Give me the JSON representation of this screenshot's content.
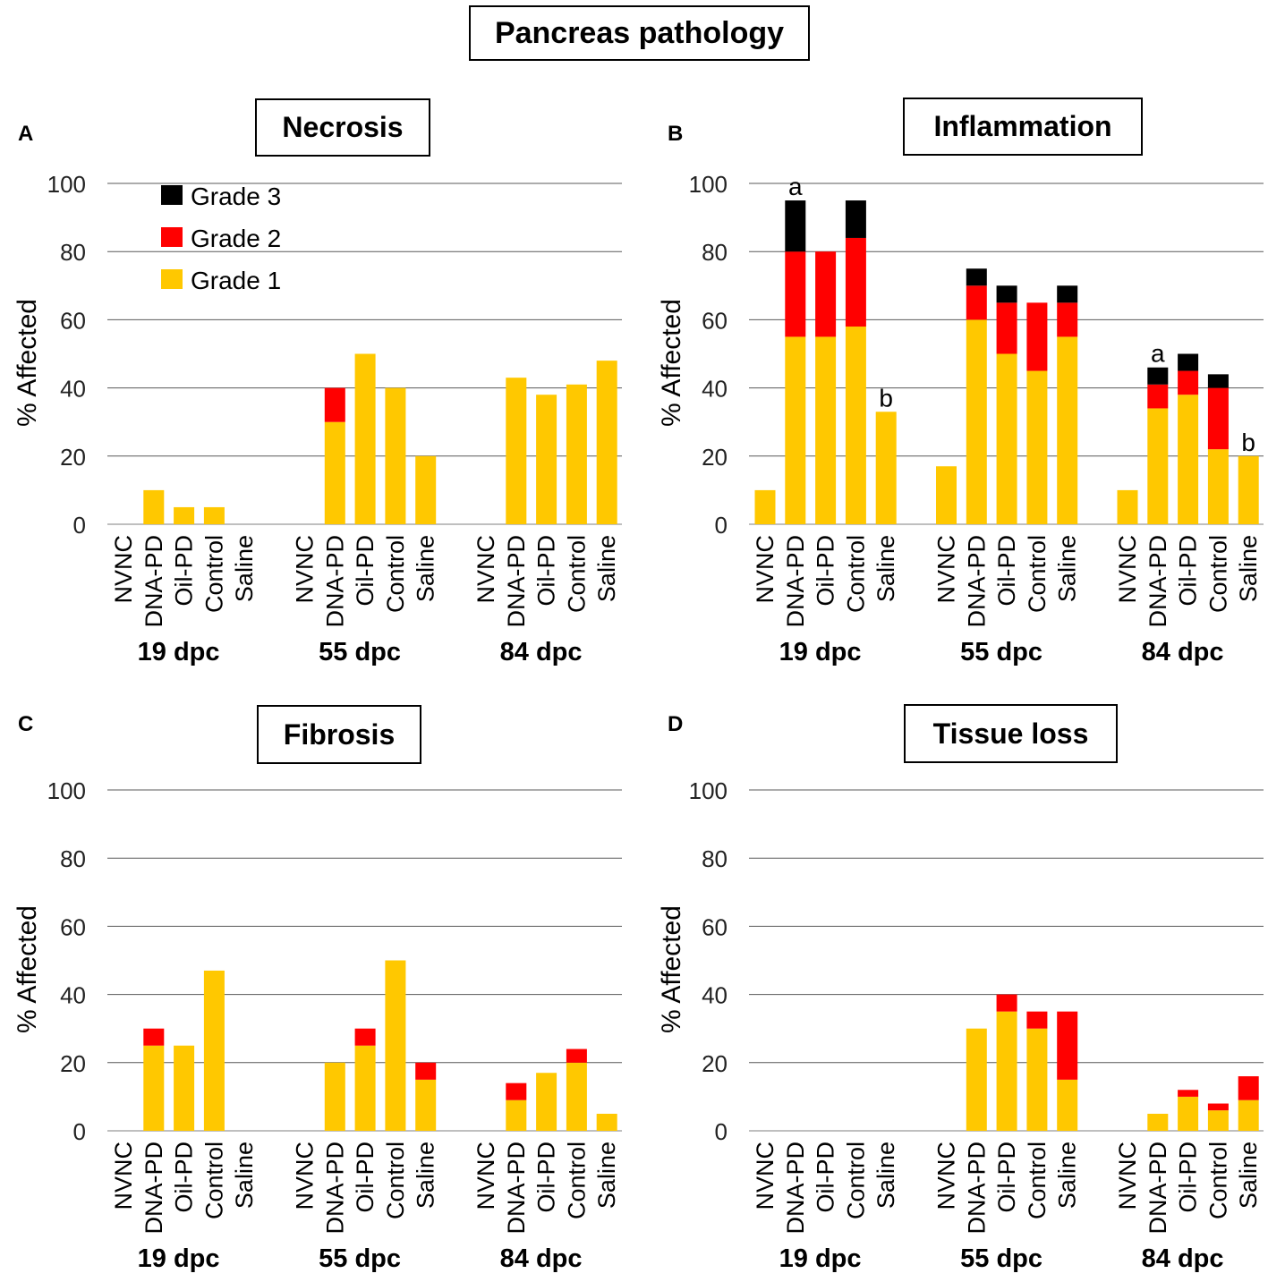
{
  "figure": {
    "title": "Pancreas pathology"
  },
  "colors": {
    "grade1": "#FFC800",
    "grade2": "#FF0000",
    "grade3": "#000000",
    "grid": "#595959",
    "axis": "#BFBFBF"
  },
  "chart_data": [
    {
      "panel": "A",
      "title": "Necrosis",
      "type": "bar",
      "stacked": true,
      "ylabel": "% Affected",
      "xlabel": "",
      "ylim": [
        0,
        100
      ],
      "yticks": [
        0,
        20,
        40,
        60,
        80,
        100
      ],
      "grid": true,
      "legend": {
        "position": "top-left",
        "entries": [
          "Grade 3",
          "Grade 2",
          "Grade 1"
        ]
      },
      "groups": [
        "19 dpc",
        "55 dpc",
        "84 dpc"
      ],
      "categories": [
        "NVNC",
        "DNA-PD",
        "Oil-PD",
        "Control",
        "Saline"
      ],
      "series": [
        {
          "name": "Grade 1",
          "values": [
            [
              0,
              10,
              5,
              5,
              0
            ],
            [
              0,
              30,
              50,
              40,
              20
            ],
            [
              0,
              43,
              38,
              41,
              48
            ]
          ]
        },
        {
          "name": "Grade 2",
          "values": [
            [
              0,
              0,
              0,
              0,
              0
            ],
            [
              0,
              10,
              0,
              0,
              0
            ],
            [
              0,
              0,
              0,
              0,
              0
            ]
          ]
        },
        {
          "name": "Grade 3",
          "values": [
            [
              0,
              0,
              0,
              0,
              0
            ],
            [
              0,
              0,
              0,
              0,
              0
            ],
            [
              0,
              0,
              0,
              0,
              0
            ]
          ]
        }
      ],
      "annotations": []
    },
    {
      "panel": "B",
      "title": "Inflammation",
      "type": "bar",
      "stacked": true,
      "ylabel": "% Affected",
      "xlabel": "",
      "ylim": [
        0,
        100
      ],
      "yticks": [
        0,
        20,
        40,
        60,
        80,
        100
      ],
      "grid": true,
      "legend": null,
      "groups": [
        "19 dpc",
        "55 dpc",
        "84 dpc"
      ],
      "categories": [
        "NVNC",
        "DNA-PD",
        "Oil-PD",
        "Control",
        "Saline"
      ],
      "series": [
        {
          "name": "Grade 1",
          "values": [
            [
              10,
              55,
              55,
              58,
              33
            ],
            [
              17,
              60,
              50,
              45,
              55
            ],
            [
              10,
              34,
              38,
              22,
              20
            ]
          ]
        },
        {
          "name": "Grade 2",
          "values": [
            [
              0,
              25,
              25,
              26,
              0
            ],
            [
              0,
              10,
              15,
              20,
              10
            ],
            [
              0,
              7,
              7,
              18,
              0
            ]
          ]
        },
        {
          "name": "Grade 3",
          "values": [
            [
              0,
              15,
              0,
              11,
              0
            ],
            [
              0,
              5,
              5,
              0,
              5
            ],
            [
              0,
              5,
              5,
              4,
              0
            ]
          ]
        }
      ],
      "annotations": [
        {
          "group": 0,
          "category": 1,
          "text": "a"
        },
        {
          "group": 0,
          "category": 4,
          "text": "b"
        },
        {
          "group": 2,
          "category": 1,
          "text": "a"
        },
        {
          "group": 2,
          "category": 4,
          "text": "b"
        }
      ]
    },
    {
      "panel": "C",
      "title": "Fibrosis",
      "type": "bar",
      "stacked": true,
      "ylabel": "% Affected",
      "xlabel": "",
      "ylim": [
        0,
        100
      ],
      "yticks": [
        0,
        20,
        40,
        60,
        80,
        100
      ],
      "grid": true,
      "legend": null,
      "groups": [
        "19 dpc",
        "55 dpc",
        "84 dpc"
      ],
      "categories": [
        "NVNC",
        "DNA-PD",
        "Oil-PD",
        "Control",
        "Saline"
      ],
      "series": [
        {
          "name": "Grade 1",
          "values": [
            [
              0,
              25,
              25,
              47,
              0
            ],
            [
              0,
              20,
              25,
              50,
              15
            ],
            [
              0,
              9,
              17,
              20,
              5
            ]
          ]
        },
        {
          "name": "Grade 2",
          "values": [
            [
              0,
              5,
              0,
              0,
              0
            ],
            [
              0,
              0,
              5,
              0,
              5
            ],
            [
              0,
              5,
              0,
              4,
              0
            ]
          ]
        },
        {
          "name": "Grade 3",
          "values": [
            [
              0,
              0,
              0,
              0,
              0
            ],
            [
              0,
              0,
              0,
              0,
              0
            ],
            [
              0,
              0,
              0,
              0,
              0
            ]
          ]
        }
      ],
      "annotations": []
    },
    {
      "panel": "D",
      "title": "Tissue loss",
      "type": "bar",
      "stacked": true,
      "ylabel": "% Affected",
      "xlabel": "",
      "ylim": [
        0,
        100
      ],
      "yticks": [
        0,
        20,
        40,
        60,
        80,
        100
      ],
      "grid": true,
      "legend": null,
      "groups": [
        "19 dpc",
        "55 dpc",
        "84 dpc"
      ],
      "categories": [
        "NVNC",
        "DNA-PD",
        "Oil-PD",
        "Control",
        "Saline"
      ],
      "series": [
        {
          "name": "Grade 1",
          "values": [
            [
              0,
              0,
              0,
              0,
              0
            ],
            [
              0,
              30,
              35,
              30,
              15
            ],
            [
              0,
              5,
              10,
              6,
              9
            ]
          ]
        },
        {
          "name": "Grade 2",
          "values": [
            [
              0,
              0,
              0,
              0,
              0
            ],
            [
              0,
              0,
              5,
              5,
              20
            ],
            [
              0,
              0,
              2,
              2,
              7
            ]
          ]
        },
        {
          "name": "Grade 3",
          "values": [
            [
              0,
              0,
              0,
              0,
              0
            ],
            [
              0,
              0,
              0,
              0,
              0
            ],
            [
              0,
              0,
              0,
              0,
              0
            ]
          ]
        }
      ],
      "annotations": []
    }
  ]
}
